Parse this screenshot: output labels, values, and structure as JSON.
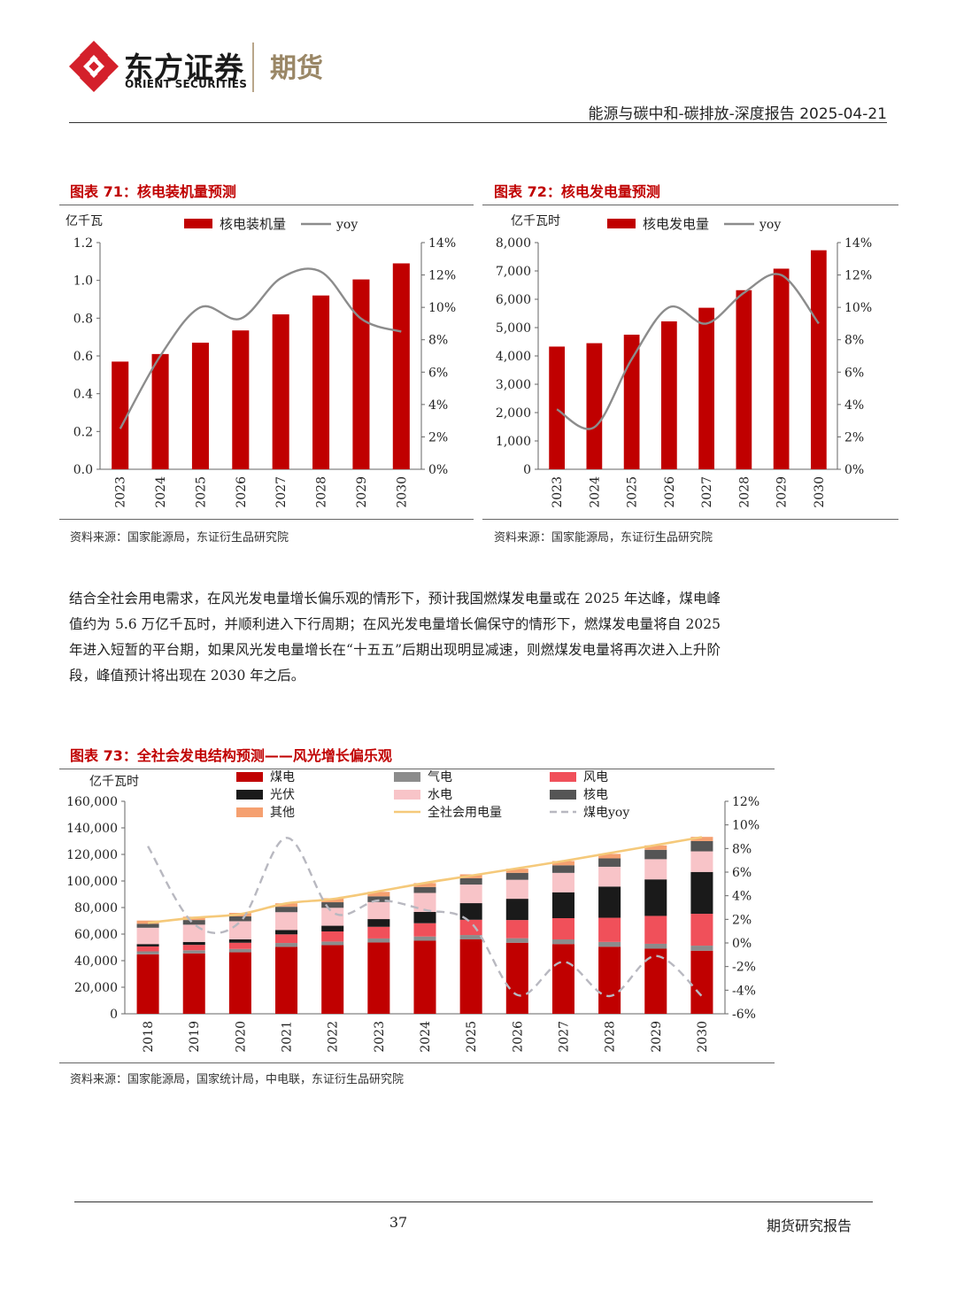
{
  "header": {
    "brand_cn": "东方证券",
    "brand_en": "ORIENT SECURITIES",
    "brand_sub": "期货",
    "report_title": "能源与碳中和-碳排放-深度报告 2025-04-21",
    "logo_icon": "orient-securities-logo-icon",
    "logo_color": "#d4202b"
  },
  "colors": {
    "red": "#c00000",
    "gray_line": "#8c8c8c",
    "coal": "#c00000",
    "gas": "#8c8c8c",
    "wind": "#f0505a",
    "solar": "#1a1a1a",
    "hydro": "#f8c4c8",
    "nuclear": "#555555",
    "other": "#f5a070",
    "total_line": "#f5c97a",
    "coal_yoy": "#b8b8c0"
  },
  "fig71": {
    "title": "图表 71：核电装机量预测",
    "source": "资料来源：国家能源局，东证衍生品研究院"
  },
  "fig72": {
    "title": "图表 72：核电发电量预测",
    "source": "资料来源：国家能源局，东证衍生品研究院"
  },
  "paragraph": "结合全社会用电需求，在风光发电量增长偏乐观的情形下，预计我国燃煤发电量或在 2025 年达峰，煤电峰值约为 5.6 万亿千瓦时，并顺利进入下行周期；在风光发电量增长偏保守的情形下，燃煤发电量将自 2025 年进入短暂的平台期，如果风光发电量增长在“十五五”后期出现明显减速，则燃煤发电量将再次进入上升阶段，峰值预计将出现在 2030 年之后。",
  "fig73": {
    "title": "图表 73：全社会发电结构预测——风光增长偏乐观",
    "source": "资料来源：国家能源局，国家统计局，中电联，东证衍生品研究院"
  },
  "footer": {
    "page_number": "37",
    "label": "期货研究报告"
  },
  "chart_data": [
    {
      "id": "fig71",
      "type": "bar",
      "categories": [
        "2023",
        "2024",
        "2025",
        "2026",
        "2027",
        "2028",
        "2029",
        "2030"
      ],
      "ylabel": "亿千瓦",
      "ylim": [
        0,
        1.2
      ],
      "yticks": [
        "0.0",
        "0.2",
        "0.4",
        "0.6",
        "0.8",
        "1.0",
        "1.2"
      ],
      "y2lim": [
        0,
        14
      ],
      "y2ticks": [
        "0%",
        "2%",
        "4%",
        "6%",
        "8%",
        "10%",
        "12%",
        "14%"
      ],
      "legend_position": "top",
      "grid": false,
      "series": [
        {
          "name": "核电装机量",
          "type": "bar",
          "axis": "left",
          "values": [
            0.57,
            0.61,
            0.67,
            0.735,
            0.82,
            0.92,
            1.005,
            1.09
          ]
        },
        {
          "name": "yoy",
          "type": "line",
          "axis": "right",
          "values": [
            2.5,
            7.0,
            10.0,
            9.3,
            11.8,
            12.2,
            9.3,
            8.5
          ]
        }
      ]
    },
    {
      "id": "fig72",
      "type": "bar",
      "categories": [
        "2023",
        "2024",
        "2025",
        "2026",
        "2027",
        "2028",
        "2029",
        "2030"
      ],
      "ylabel": "亿千瓦时",
      "ylim": [
        0,
        8000
      ],
      "yticks": [
        "0",
        "1,000",
        "2,000",
        "3,000",
        "4,000",
        "5,000",
        "6,000",
        "7,000",
        "8,000"
      ],
      "y2lim": [
        0,
        14
      ],
      "y2ticks": [
        "0%",
        "2%",
        "4%",
        "6%",
        "8%",
        "10%",
        "12%",
        "14%"
      ],
      "legend_position": "top",
      "grid": false,
      "series": [
        {
          "name": "核电发电量",
          "type": "bar",
          "axis": "left",
          "values": [
            4330,
            4450,
            4750,
            5220,
            5700,
            6320,
            7080,
            7730
          ]
        },
        {
          "name": "yoy",
          "type": "line",
          "axis": "right",
          "values": [
            3.7,
            2.6,
            6.8,
            10.0,
            9.0,
            10.9,
            12.0,
            9.0
          ]
        }
      ]
    },
    {
      "id": "fig73",
      "type": "bar",
      "stacked": true,
      "categories": [
        "2018",
        "2019",
        "2020",
        "2021",
        "2022",
        "2023",
        "2024",
        "2025",
        "2026",
        "2027",
        "2028",
        "2029",
        "2030"
      ],
      "ylabel": "亿千瓦时",
      "ylim": [
        0,
        160000
      ],
      "yticks": [
        "0",
        "20,000",
        "40,000",
        "60,000",
        "80,000",
        "100,000",
        "120,000",
        "140,000",
        "160,000"
      ],
      "y2lim": [
        -6,
        12
      ],
      "y2ticks": [
        "-6%",
        "-4%",
        "-2%",
        "0%",
        "2%",
        "4%",
        "6%",
        "8%",
        "10%",
        "12%"
      ],
      "legend_position": "top",
      "grid": false,
      "series": [
        {
          "name": "煤电",
          "type": "bar",
          "axis": "left",
          "color_key": "coal",
          "values": [
            44800,
            45500,
            46300,
            50400,
            51700,
            53700,
            55000,
            56000,
            53500,
            52500,
            50500,
            49000,
            47500
          ]
        },
        {
          "name": "气电",
          "type": "bar",
          "axis": "left",
          "color_key": "gas",
          "values": [
            2200,
            2300,
            2500,
            2900,
            2700,
            3000,
            3200,
            3300,
            3400,
            3500,
            3600,
            3700,
            3800
          ]
        },
        {
          "name": "风电",
          "type": "bar",
          "axis": "left",
          "color_key": "wind",
          "values": [
            3700,
            4100,
            4700,
            6500,
            7600,
            8800,
            10000,
            11500,
            13700,
            16000,
            18200,
            21000,
            24000
          ]
        },
        {
          "name": "光伏",
          "type": "bar",
          "axis": "left",
          "color_key": "solar",
          "values": [
            1800,
            2200,
            2600,
            3300,
            4300,
            5800,
            8500,
            12500,
            16000,
            19500,
            23500,
            27500,
            31500
          ]
        },
        {
          "name": "水电",
          "type": "bar",
          "axis": "left",
          "color_key": "hydro",
          "values": [
            12300,
            13000,
            13600,
            13400,
            13500,
            12800,
            14300,
            14000,
            14300,
            14600,
            14900,
            15200,
            15500
          ]
        },
        {
          "name": "核电",
          "type": "bar",
          "axis": "left",
          "color_key": "nuclear",
          "values": [
            2950,
            3490,
            3660,
            4070,
            4180,
            4330,
            4450,
            4750,
            5220,
            5700,
            6320,
            7080,
            7730
          ]
        },
        {
          "name": "其他",
          "type": "bar",
          "axis": "left",
          "color_key": "other",
          "values": [
            2450,
            2510,
            2640,
            2630,
            3020,
            3370,
            2950,
            2950,
            3080,
            3200,
            3380,
            3320,
            3170
          ]
        },
        {
          "name": "全社会用电量",
          "type": "line",
          "axis": "left",
          "color_key": "total_line",
          "values": [
            68400,
            72300,
            75100,
            83100,
            86400,
            92200,
            98500,
            104000,
            109500,
            115000,
            121000,
            127000,
            133000
          ]
        },
        {
          "name": "煤电yoy",
          "type": "line",
          "dash": true,
          "axis": "right",
          "color_key": "coal_yoy",
          "values": [
            8.2,
            1.6,
            1.8,
            8.9,
            2.6,
            3.6,
            2.8,
            1.7,
            -4.4,
            -1.6,
            -4.5,
            -1.1,
            -4.5
          ]
        }
      ]
    }
  ]
}
